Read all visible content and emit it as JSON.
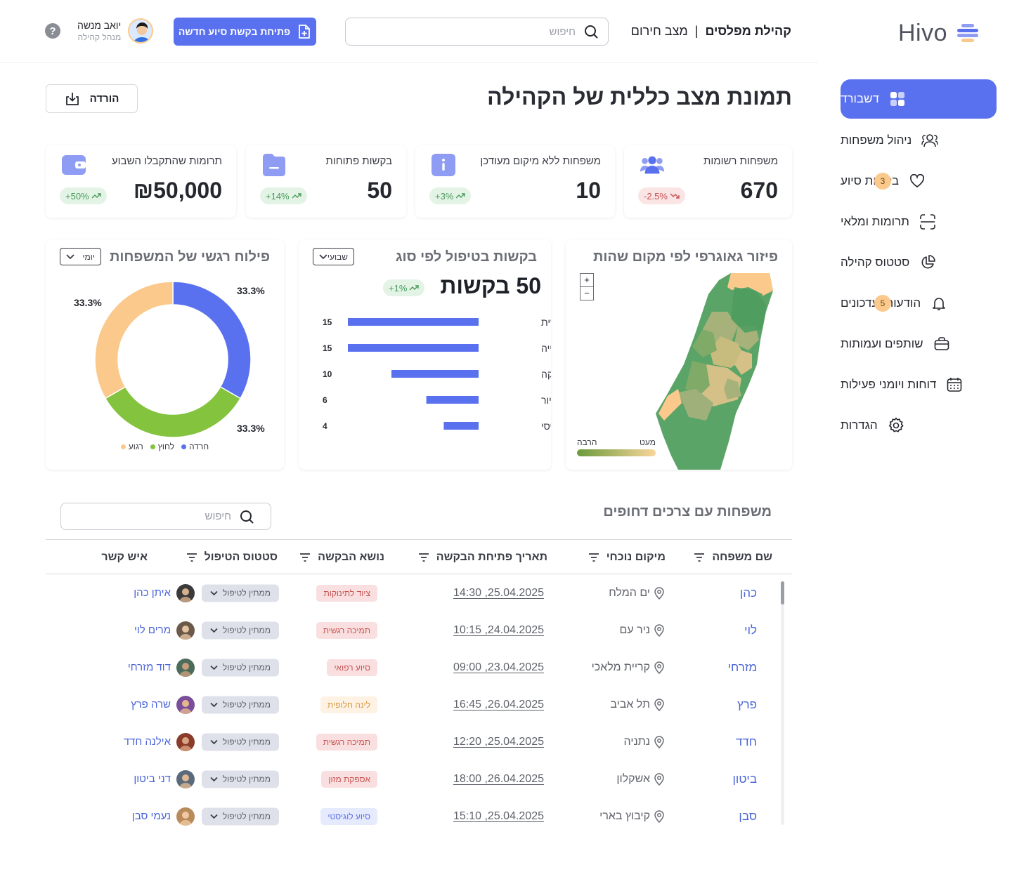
{
  "brand": {
    "name": "Hivo"
  },
  "sidebar": {
    "items": [
      {
        "label": "דשבורד",
        "icon": "grid-icon",
        "active": true
      },
      {
        "label": "ניהול משפחות",
        "icon": "users-icon"
      },
      {
        "label": "בקשות סיוע",
        "icon": "heart-icon",
        "badge": "3"
      },
      {
        "label": "תרומות ומלאי",
        "icon": "scan-icon"
      },
      {
        "label": "סטטוס קהילה",
        "icon": "pie-icon"
      },
      {
        "label": "הודעות ועדכונים",
        "icon": "bell-icon",
        "badge": "5"
      },
      {
        "label": "שותפים ועמותות",
        "icon": "briefcase-icon"
      },
      {
        "label": "דוחות ויומני פעילות",
        "icon": "calendar-icon"
      },
      {
        "label": "הגדרות",
        "icon": "gear-icon"
      }
    ]
  },
  "header": {
    "community": "קהילת מפלסים",
    "mode": "מצב חירום",
    "separator": "|",
    "search_placeholder": "חיפוש",
    "new_request": "פתיחת בקשת סיוע חדשה",
    "user_name": "יואב מנשה",
    "user_role": "מנהל קהילה",
    "help": "?"
  },
  "page": {
    "title": "תמונת מצב כללית של הקהילה",
    "download": "הורדה"
  },
  "stats": [
    {
      "label": "משפחות רשומות",
      "value": "670",
      "change": "-2.5%",
      "trend": "down",
      "icon": "people-icon"
    },
    {
      "label": "משפחות ללא מיקום מעודכן",
      "value": "10",
      "change": "+3%",
      "trend": "up",
      "icon": "info-icon"
    },
    {
      "label": "בקשות פתוחות",
      "value": "50",
      "change": "+14%",
      "trend": "up",
      "icon": "folder-icon"
    },
    {
      "label": "תרומות שהתקבלו השבוע",
      "value": "₪50,000",
      "change": "+50%",
      "trend": "up",
      "icon": "wallet-icon"
    }
  ],
  "map_widget": {
    "title": "פיזור גאוגרפי לפי מקום שהות",
    "zoom_in": "+",
    "zoom_out": "−",
    "legend_low": "מעט",
    "legend_high": "הרבה"
  },
  "requests_widget": {
    "title": "בקשות בטיפול לפי סוג",
    "period": "שבועי",
    "total": "50 בקשות",
    "change": "+1%"
  },
  "emotional_widget": {
    "title": "פילוח רגשי של המשפחות",
    "period": "יומי"
  },
  "chart_data": [
    {
      "type": "bar",
      "title": "בקשות בטיפול לפי סוג",
      "categories": [
        "תמיכה נפשית",
        "מזון ושתייה",
        "לוגיסטיקה",
        "לינה ודיור",
        "ציוד בסיסי"
      ],
      "values": [
        15,
        15,
        10,
        6,
        4
      ],
      "orientation": "horizontal",
      "color": "#5a71ef"
    },
    {
      "type": "pie",
      "title": "פילוח רגשי של המשפחות",
      "categories": [
        "חרדה",
        "לחוץ",
        "רגוע"
      ],
      "values": [
        33.3,
        33.3,
        33.3
      ],
      "labels": [
        "33.3%",
        "33.3%",
        "33.3%"
      ],
      "colors": [
        "#5a71ef",
        "#83c33d",
        "#fbc98c"
      ],
      "legend_position": "bottom",
      "donut": true
    }
  ],
  "table": {
    "title": "משפחות עם צרכים דחופים",
    "search_placeholder": "חיפוש",
    "columns": [
      "שם משפחה",
      "מיקום נוכחי",
      "תאריך פתיחת הבקשה",
      "נושא הבקשה",
      "סטטוס הטיפול",
      "איש קשר"
    ],
    "rows": [
      {
        "family": "כהן",
        "location": "ים המלח",
        "date": "25.04.2025, 14:30",
        "topic": "ציוד לתינוקות",
        "topic_color": "red",
        "status": "ממתין לטיפול",
        "contact": "איתן כהן"
      },
      {
        "family": "לוי",
        "location": "ניר עם",
        "date": "24.04.2025, 10:15",
        "topic": "תמיכה רגשית",
        "topic_color": "red",
        "status": "ממתין לטיפול",
        "contact": "מרים לוי"
      },
      {
        "family": "מזרחי",
        "location": "קריית מלאכי",
        "date": "23.04.2025, 09:00",
        "topic": "סיוע רפואי",
        "topic_color": "red",
        "status": "ממתין לטיפול",
        "contact": "דוד מזרחי"
      },
      {
        "family": "פרץ",
        "location": "תל אביב",
        "date": "26.04.2025, 16:45",
        "topic": "לינה חלופית",
        "topic_color": "yellow",
        "status": "ממתין לטיפול",
        "contact": "שרה פרץ"
      },
      {
        "family": "חדד",
        "location": "נתניה",
        "date": "25.04.2025, 12:20",
        "topic": "תמיכה רגשית",
        "topic_color": "red",
        "status": "ממתין לטיפול",
        "contact": "אילנה חדד"
      },
      {
        "family": "ביטון",
        "location": "אשקלון",
        "date": "26.04.2025, 18:00",
        "topic": "אספקת מזון",
        "topic_color": "red",
        "status": "ממתין לטיפול",
        "contact": "דני ביטון"
      },
      {
        "family": "סבן",
        "location": "קיבוץ בארי",
        "date": "25.04.2025, 15:10",
        "topic": "סיוע לוגיסטי",
        "topic_color": "blue",
        "status": "ממתין לטיפול",
        "contact": "נעמי סבן"
      }
    ]
  },
  "colors": {
    "primary": "#5a71ef",
    "badge": "#fbc98c",
    "green": "#83c33d",
    "map_green": "#5aa468",
    "map_peach": "#fbc98c"
  }
}
